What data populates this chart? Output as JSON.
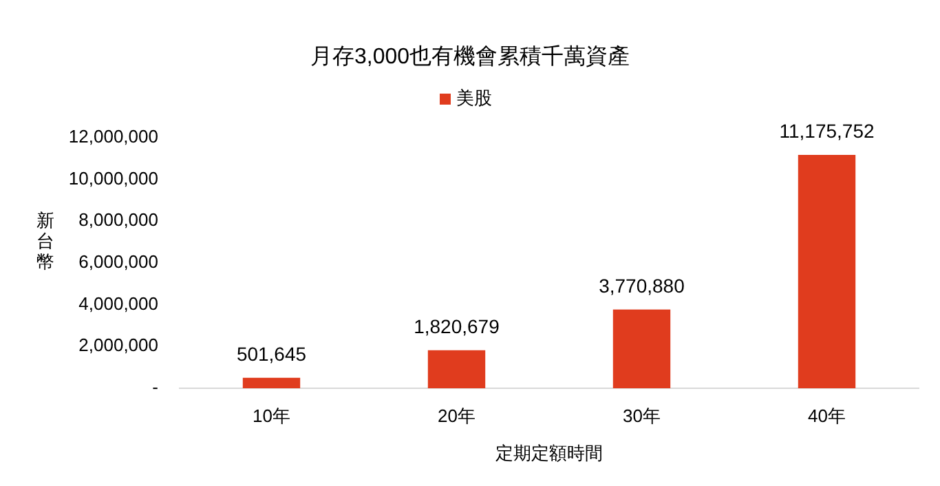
{
  "chart_data": {
    "type": "bar",
    "title": "月存3,000也有機會累積千萬資產",
    "xlabel": "定期定額時間",
    "ylabel": "新台幣",
    "categories": [
      "10年",
      "20年",
      "30年",
      "40年"
    ],
    "series": [
      {
        "name": "美股",
        "color": "#e03c1e",
        "values": [
          501645,
          1820679,
          3770880,
          11175752
        ],
        "value_labels": [
          "501,645",
          "1,820,679",
          "3,770,880",
          "11,175,752"
        ]
      }
    ],
    "ylim": [
      0,
      12000000
    ],
    "yticks": [
      {
        "value": 0,
        "label": "-"
      },
      {
        "value": 2000000,
        "label": "2,000,000"
      },
      {
        "value": 4000000,
        "label": "4,000,000"
      },
      {
        "value": 6000000,
        "label": "6,000,000"
      },
      {
        "value": 8000000,
        "label": "8,000,000"
      },
      {
        "value": 10000000,
        "label": "10,000,000"
      },
      {
        "value": 12000000,
        "label": "12,000,000"
      }
    ],
    "legend": "top",
    "grid": false
  }
}
